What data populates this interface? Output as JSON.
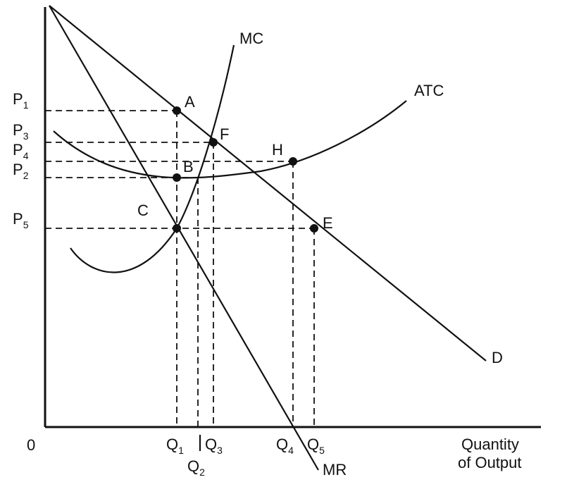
{
  "diagram": {
    "origin_label": "0",
    "x_axis_label_line1": "Quantity",
    "x_axis_label_line2": "of Output",
    "curves": {
      "mc": "MC",
      "atc": "ATC",
      "demand": "D",
      "mr": "MR"
    },
    "price_labels": [
      {
        "base": "P",
        "sub": "1"
      },
      {
        "base": "P",
        "sub": "3"
      },
      {
        "base": "P",
        "sub": "4"
      },
      {
        "base": "P",
        "sub": "2"
      },
      {
        "base": "P",
        "sub": "5"
      }
    ],
    "quantity_labels": [
      {
        "base": "Q",
        "sub": "1"
      },
      {
        "base": "Q",
        "sub": "2"
      },
      {
        "base": "Q",
        "sub": "3"
      },
      {
        "base": "Q",
        "sub": "4"
      },
      {
        "base": "Q",
        "sub": "5"
      }
    ],
    "points": [
      "A",
      "F",
      "H",
      "B",
      "C",
      "E"
    ],
    "colors": {
      "ink": "#111111",
      "background": "#ffffff"
    }
  }
}
